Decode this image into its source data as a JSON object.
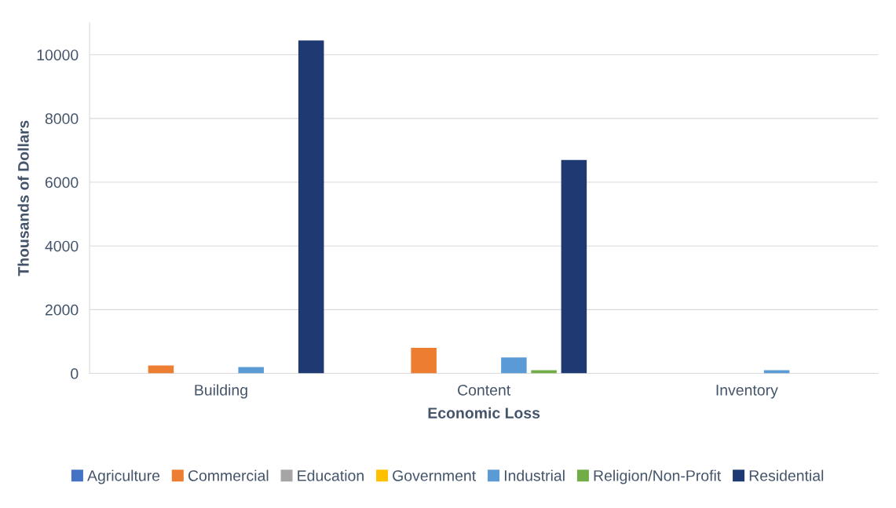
{
  "chart_data": {
    "type": "bar",
    "xlabel": "Economic Loss",
    "ylabel": "Thousands of Dollars",
    "categories": [
      "Building",
      "Content",
      "Inventory"
    ],
    "series": [
      {
        "name": "Agriculture",
        "color": "#4472c4",
        "values": [
          0,
          0,
          0
        ]
      },
      {
        "name": "Commercial",
        "color": "#ed7d31",
        "values": [
          250,
          800,
          0
        ]
      },
      {
        "name": "Education",
        "color": "#a5a5a5",
        "values": [
          0,
          0,
          0
        ]
      },
      {
        "name": "Government",
        "color": "#ffc000",
        "values": [
          0,
          0,
          0
        ]
      },
      {
        "name": "Industrial",
        "color": "#5b9bd5",
        "values": [
          200,
          500,
          100
        ]
      },
      {
        "name": "Religion/Non-Profit",
        "color": "#70ad47",
        "values": [
          0,
          100,
          0
        ]
      },
      {
        "name": "Residential",
        "color": "#1f3a73",
        "values": [
          10450,
          6700,
          0
        ]
      }
    ],
    "ylim": [
      0,
      11000
    ],
    "yticks": [
      0,
      2000,
      4000,
      6000,
      8000,
      10000
    ],
    "grid": "y",
    "legend": "bottom"
  }
}
